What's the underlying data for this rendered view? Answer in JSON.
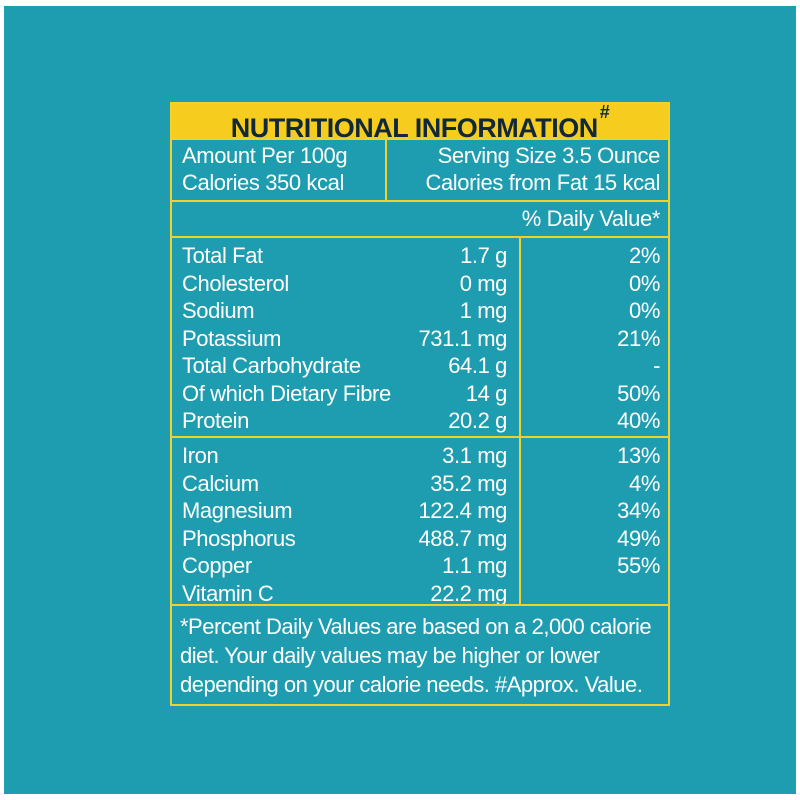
{
  "label": {
    "title": "NUTRITIONAL INFORMATION",
    "title_mark": "#",
    "amount_per": "Amount Per 100g",
    "calories": "Calories 350 kcal",
    "serving_size": "Serving Size 3.5 Ounce",
    "calories_from_fat": "Calories from Fat 15 kcal",
    "daily_value_header": "% Daily Value*",
    "nutrients": [
      {
        "name": "Total Fat",
        "amount": "1.7 g",
        "dv": "2%"
      },
      {
        "name": "Cholesterol",
        "amount": "0 mg",
        "dv": "0%"
      },
      {
        "name": "Sodium",
        "amount": "1 mg",
        "dv": "0%"
      },
      {
        "name": "Potassium",
        "amount": "731.1 mg",
        "dv": "21%"
      },
      {
        "name": "Total Carbohydrate",
        "amount": "64.1 g",
        "dv": "-"
      },
      {
        "name": "Of which Dietary Fibre",
        "amount": "14 g",
        "dv": "50%"
      },
      {
        "name": "Protein",
        "amount": "20.2 g",
        "dv": "40%"
      }
    ],
    "minerals": [
      {
        "name": "Iron",
        "amount": "3.1 mg",
        "dv": "13%"
      },
      {
        "name": "Calcium",
        "amount": "35.2 mg",
        "dv": "4%"
      },
      {
        "name": "Magnesium",
        "amount": "122.4 mg",
        "dv": "34%"
      },
      {
        "name": "Phosphorus",
        "amount": "488.7 mg",
        "dv": "49%"
      },
      {
        "name": "Copper",
        "amount": "1.1 mg",
        "dv": "55%"
      },
      {
        "name": "Vitamin C",
        "amount": "22.2 mg",
        "dv": ""
      }
    ],
    "footnote": "*Percent Daily Values are based on a 2,000 calorie diet. Your daily values may be higher or lower depending on your calorie needs. #Approx. Value."
  },
  "colors": {
    "background": "#1f9db0",
    "accent": "#f6cd1f",
    "title_text": "#10283a",
    "text": "#ffffff"
  }
}
